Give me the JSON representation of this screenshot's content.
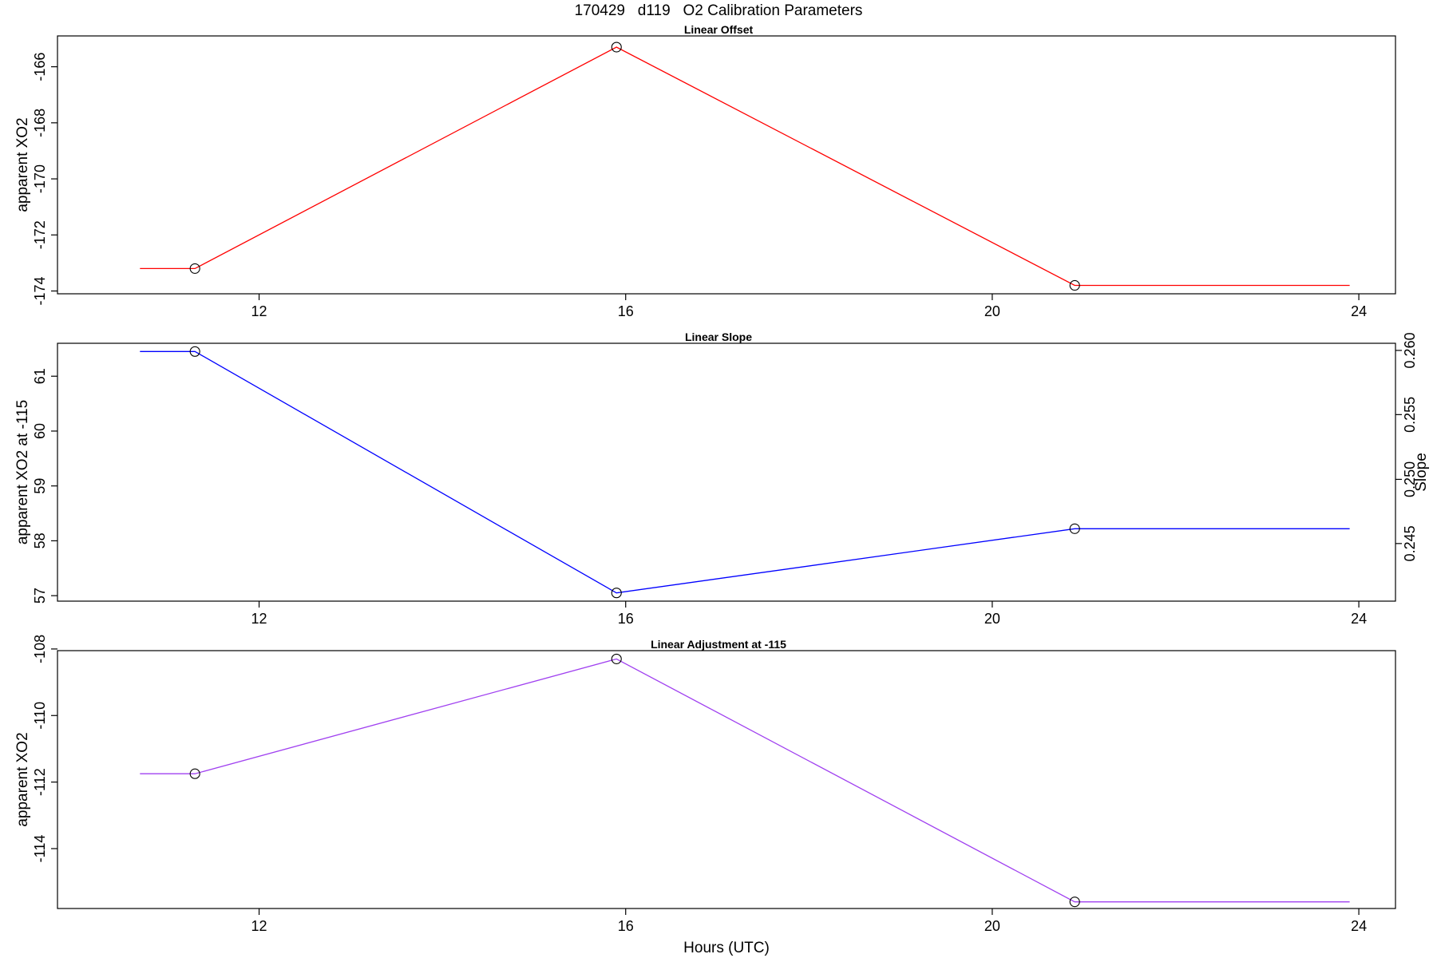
{
  "title": "170429   d119   O2 Calibration Parameters",
  "xlabel": "Hours (UTC)",
  "chart_data": [
    {
      "type": "line",
      "title": "Linear Offset",
      "ylabel": "apparent XO2",
      "color": "#ff0000",
      "x": [
        11.3,
        15.9,
        20.9
      ],
      "values": [
        -173.2,
        -165.3,
        -173.8
      ],
      "line_start_x": 10.7,
      "line_end_x": 23.9,
      "xlim": [
        9.8,
        24.4
      ],
      "ylim": [
        -174.1,
        -164.9
      ],
      "x_ticks": [
        12,
        16,
        20,
        24
      ],
      "y_ticks": [
        -174,
        -172,
        -170,
        -168,
        -166
      ],
      "grid": false
    },
    {
      "type": "line",
      "title": "Linear Slope",
      "ylabel": "apparent XO2 at -115",
      "y2label": "Slope",
      "color": "#0000ff",
      "x": [
        11.3,
        15.9,
        20.9
      ],
      "values": [
        61.45,
        57.05,
        58.22
      ],
      "line_start_x": 10.7,
      "line_end_x": 23.9,
      "xlim": [
        9.8,
        24.4
      ],
      "ylim": [
        56.9,
        61.6
      ],
      "x_ticks": [
        12,
        16,
        20,
        24
      ],
      "y_ticks": [
        57,
        58,
        59,
        60,
        61
      ],
      "y2_ticks": [
        0.245,
        0.25,
        0.255,
        0.26
      ],
      "y2_tick_labels": [
        "0.245",
        "0.250",
        "0.255",
        "0.260"
      ],
      "y2_ticks_at_y": [
        57.95,
        59.12,
        60.3,
        61.47
      ],
      "grid": false
    },
    {
      "type": "line",
      "title": "Linear Adjustment at -115",
      "ylabel": "apparent XO2",
      "color": "#a040f0",
      "x": [
        11.3,
        15.9,
        20.9
      ],
      "values": [
        -111.75,
        -108.3,
        -115.6
      ],
      "line_start_x": 10.7,
      "line_end_x": 23.9,
      "xlim": [
        9.8,
        24.4
      ],
      "ylim": [
        -115.8,
        -108.05
      ],
      "x_ticks": [
        12,
        16,
        20,
        24
      ],
      "y_ticks": [
        -114,
        -112,
        -110,
        -108
      ],
      "grid": false
    }
  ]
}
